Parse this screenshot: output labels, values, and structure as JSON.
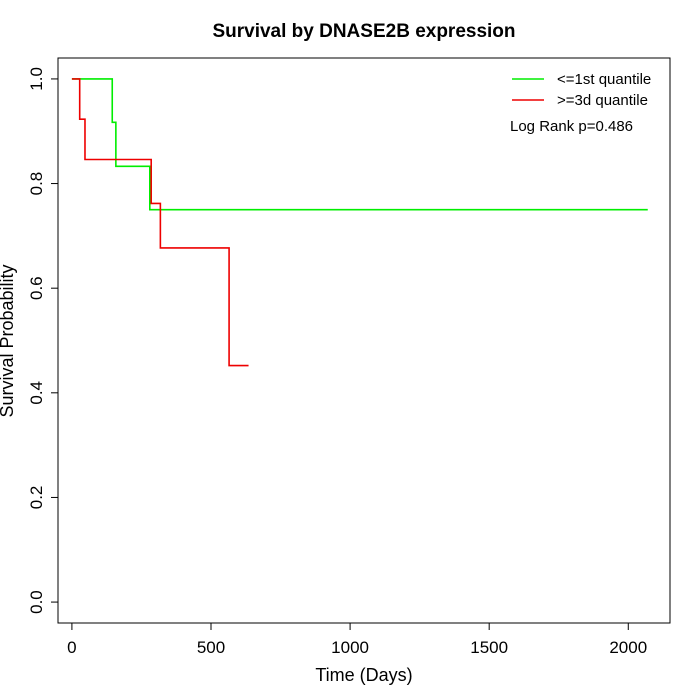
{
  "chart_data": {
    "type": "line",
    "title": "Survival by DNASE2B expression",
    "xlabel": "Time (Days)",
    "ylabel": "Survival Probability",
    "xlim": [
      -50,
      2150
    ],
    "ylim": [
      -0.04,
      1.04
    ],
    "x_ticks": [
      0,
      500,
      1000,
      1500,
      2000
    ],
    "y_ticks": [
      0.0,
      0.2,
      0.4,
      0.6,
      0.8,
      1.0
    ],
    "x_tick_labels": [
      "0",
      "500",
      "1000",
      "1500",
      "2000"
    ],
    "y_tick_labels": [
      "0.0",
      "0.2",
      "0.4",
      "0.6",
      "0.8",
      "1.0"
    ],
    "grid": false,
    "legend_position": "top-right",
    "annotation": "Log Rank p=0.486",
    "series": [
      {
        "name": "<=1st quantile",
        "color": "#00ee00",
        "step_points": [
          [
            0,
            1.0
          ],
          [
            145,
            0.917
          ],
          [
            158,
            0.833
          ],
          [
            280,
            0.75
          ],
          [
            2070,
            0.75
          ]
        ]
      },
      {
        "name": ">=3d quantile",
        "color": "#ee0000",
        "step_points": [
          [
            0,
            1.0
          ],
          [
            28,
            0.923
          ],
          [
            47,
            0.846
          ],
          [
            285,
            0.762
          ],
          [
            318,
            0.677
          ],
          [
            565,
            0.452
          ],
          [
            635,
            0.452
          ]
        ]
      }
    ]
  }
}
